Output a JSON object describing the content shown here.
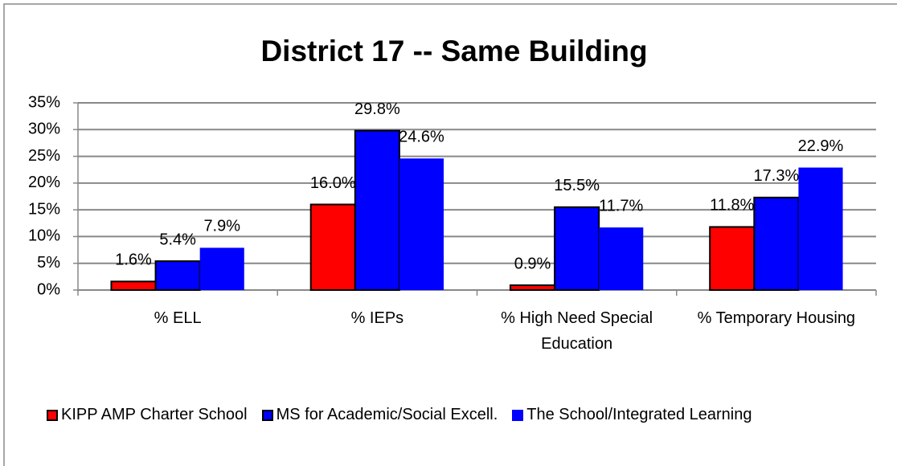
{
  "chart_data": {
    "type": "bar",
    "title": "District 17 -- Same Building",
    "categories": [
      "% ELL",
      "% IEPs",
      "% High Need Special Education",
      "% Temporary Housing"
    ],
    "series": [
      {
        "name": "KIPP AMP Charter School",
        "color": "#ff0000",
        "edgecolor": "#000000",
        "values": [
          1.6,
          16.0,
          0.9,
          11.8
        ],
        "value_labels": [
          "1.6%",
          "16.0%",
          "0.9%",
          "11.8%"
        ]
      },
      {
        "name": "MS for Academic/Social Excell.",
        "color": "#0000ff",
        "edgecolor": "#000000",
        "values": [
          5.4,
          29.8,
          15.5,
          17.3
        ],
        "value_labels": [
          "5.4%",
          "29.8%",
          "15.5%",
          "17.3%"
        ]
      },
      {
        "name": "The School/Integrated Learning",
        "color": "#0000ff",
        "values": [
          7.9,
          24.6,
          11.7,
          22.9
        ],
        "value_labels": [
          "7.9%",
          "24.6%",
          "11.7%",
          "22.9%"
        ]
      }
    ],
    "ylim": [
      0,
      35
    ],
    "yticks": [
      {
        "value": 0,
        "label": "0%"
      },
      {
        "value": 5,
        "label": "5%"
      },
      {
        "value": 10,
        "label": "10%"
      },
      {
        "value": 15,
        "label": "15%"
      },
      {
        "value": 20,
        "label": "20%"
      },
      {
        "value": 25,
        "label": "25%"
      },
      {
        "value": 30,
        "label": "30%"
      },
      {
        "value": 35,
        "label": "35%"
      }
    ],
    "grid": true,
    "legend": "bottom"
  }
}
